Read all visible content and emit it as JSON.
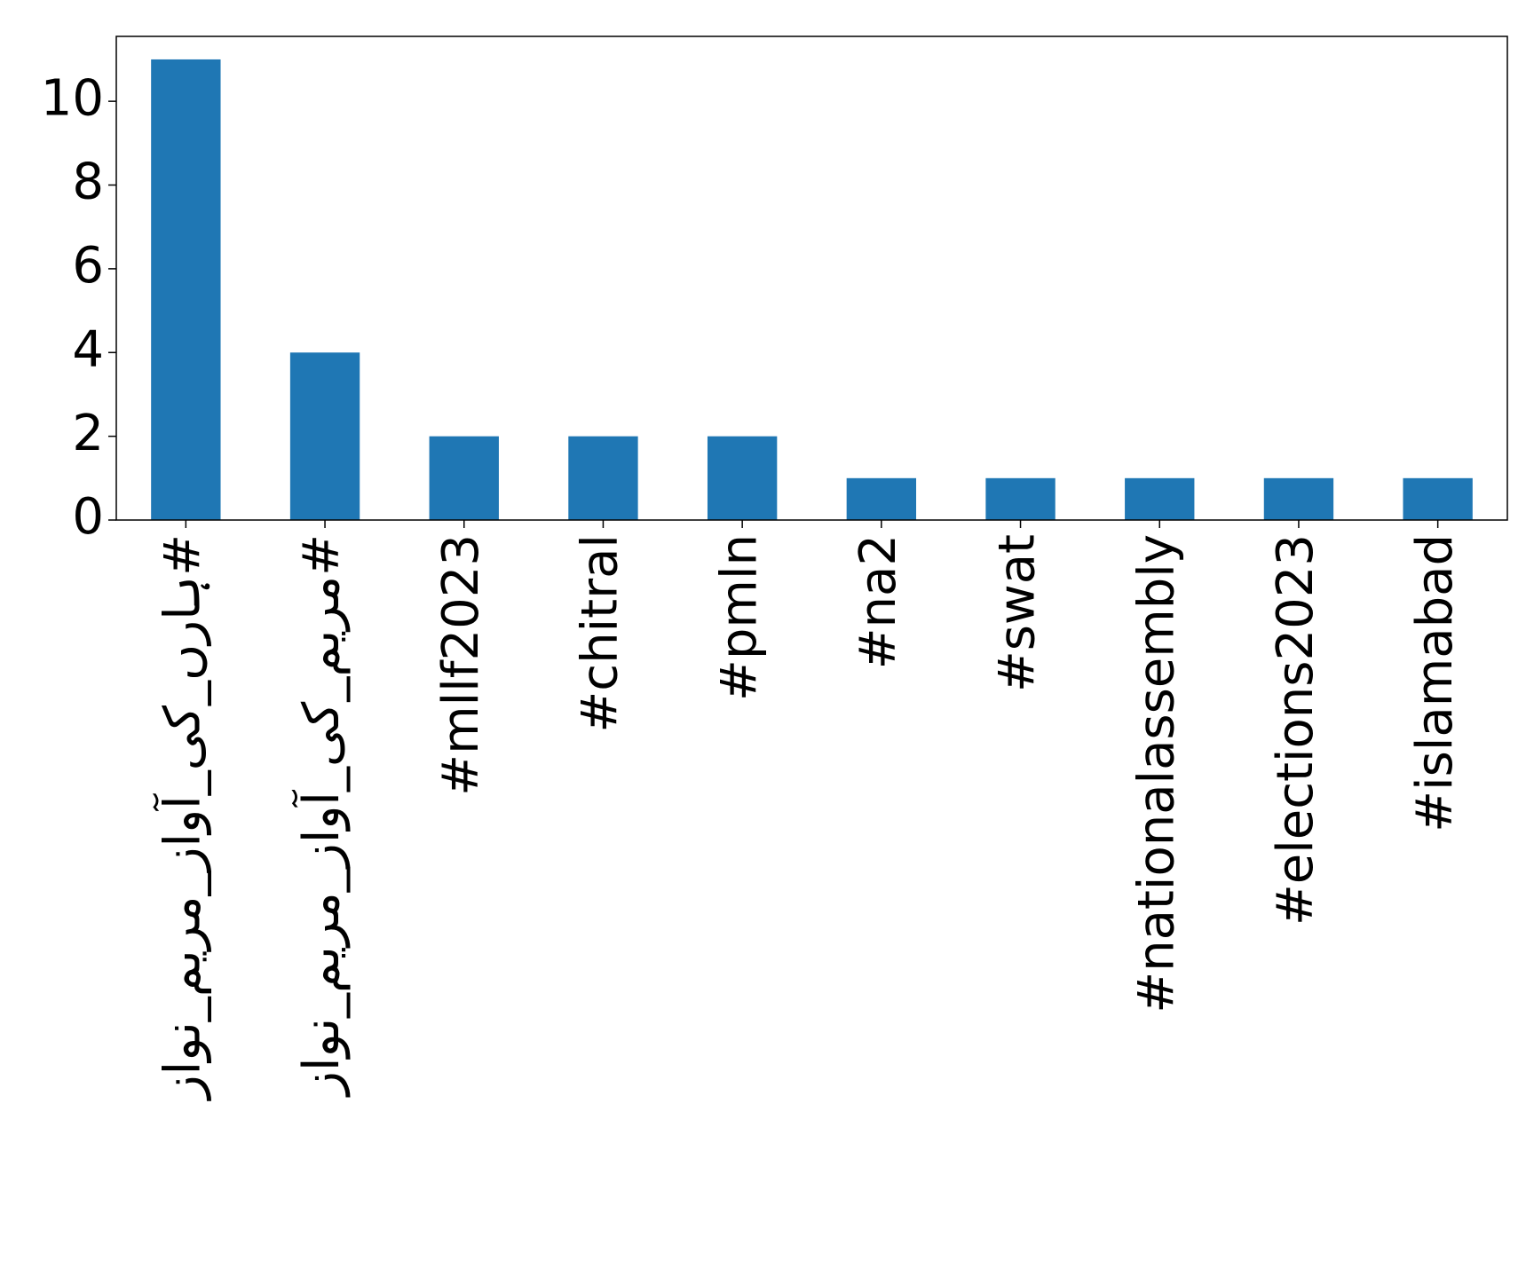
{
  "chart_data": {
    "type": "bar",
    "categories": [
      "#ہارں_کی_آواز_مریم_نواز",
      "#مریم_کی_آواز_مریم_نواز",
      "#mllf2023",
      "#chitral",
      "#pmln",
      "#na2",
      "#swat",
      "#nationalassembly",
      "#elections2023",
      "#islamabad"
    ],
    "values": [
      11,
      4,
      2,
      2,
      2,
      1,
      1,
      1,
      1,
      1
    ],
    "color": "#1f77b4",
    "ylim": [
      0,
      11.55
    ],
    "yticks": [
      0,
      2,
      4,
      6,
      8,
      10
    ],
    "grid": false
  }
}
